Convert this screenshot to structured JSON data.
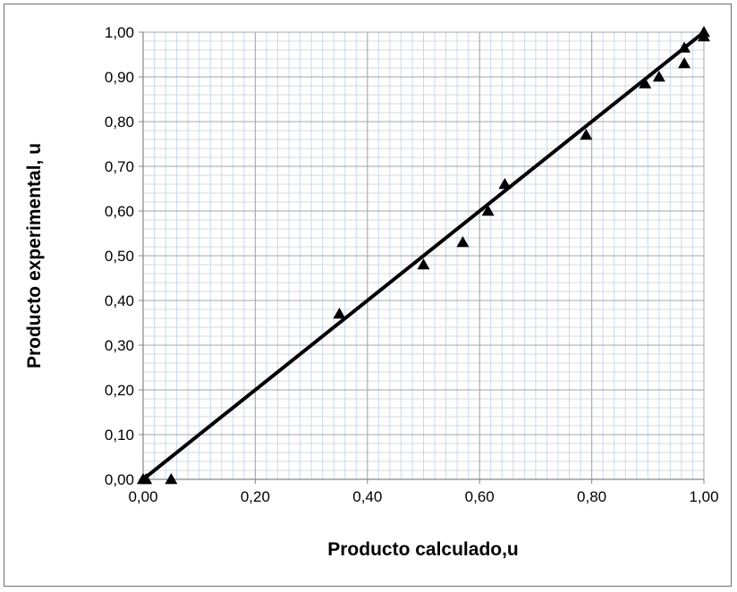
{
  "chart_data": {
    "type": "scatter",
    "title": "",
    "xlabel": "Producto calculado,u",
    "ylabel": "Producto experimental, u",
    "xlim": [
      0,
      1
    ],
    "ylim": [
      0,
      1
    ],
    "x_ticks": [
      "0,00",
      "0,20",
      "0,40",
      "0,60",
      "0,80",
      "1,00"
    ],
    "y_ticks": [
      "0,00",
      "0,10",
      "0,20",
      "0,30",
      "0,40",
      "0,50",
      "0,60",
      "0,70",
      "0,80",
      "0,90",
      "1,00"
    ],
    "grid": true,
    "legend": "none",
    "marker": "triangle",
    "series": [
      {
        "points": [
          {
            "x": 0.0,
            "y": 0.0
          },
          {
            "x": 0.005,
            "y": 0.0
          },
          {
            "x": 0.05,
            "y": 0.0
          },
          {
            "x": 0.35,
            "y": 0.37
          },
          {
            "x": 0.5,
            "y": 0.48
          },
          {
            "x": 0.57,
            "y": 0.53
          },
          {
            "x": 0.615,
            "y": 0.6
          },
          {
            "x": 0.645,
            "y": 0.66
          },
          {
            "x": 0.79,
            "y": 0.77
          },
          {
            "x": 0.895,
            "y": 0.885
          },
          {
            "x": 0.92,
            "y": 0.9
          },
          {
            "x": 0.965,
            "y": 0.93
          },
          {
            "x": 0.965,
            "y": 0.965
          },
          {
            "x": 1.0,
            "y": 0.99
          },
          {
            "x": 1.0,
            "y": 1.0
          }
        ]
      }
    ],
    "reference_line": {
      "x": [
        0,
        1
      ],
      "y": [
        0,
        1
      ]
    },
    "colors": {
      "line": "#000000",
      "marker": "#000000",
      "grid_minor": "#d9d9d9",
      "grid_vertical": "#c6d9f1",
      "axis": "#868686"
    }
  }
}
